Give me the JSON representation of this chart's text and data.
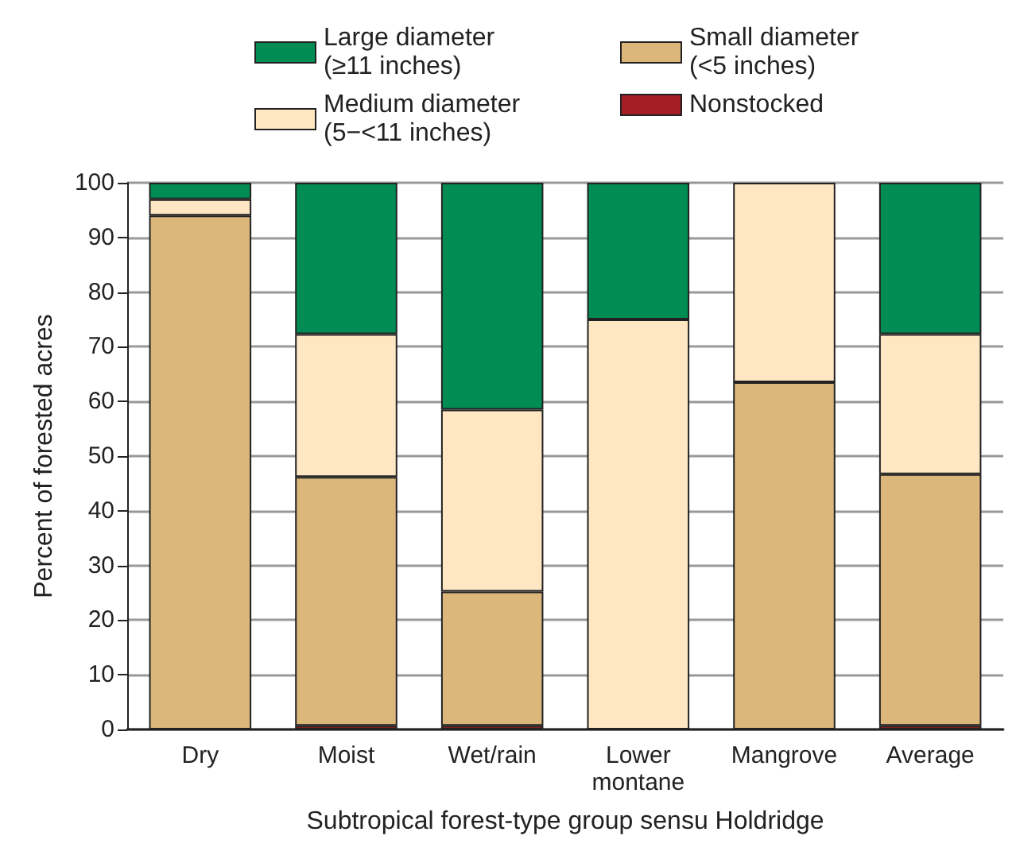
{
  "chart_data": {
    "type": "bar",
    "stacked": true,
    "xlabel": "Subtropical forest-type group sensu Holdridge",
    "ylabel": "Percent of forested acres",
    "categories": [
      "Dry",
      "Moist",
      "Wet/rain",
      "Lower montane",
      "Mangrove",
      "Average"
    ],
    "series": [
      {
        "name": "Nonstocked",
        "color": "#a31f24",
        "values": [
          0,
          0.7,
          0.7,
          0,
          0,
          0.7
        ]
      },
      {
        "name": "Small diameter (<5 inches)",
        "color": "#dbb77c",
        "values": [
          94,
          45.5,
          24.5,
          0,
          63.5,
          46
        ]
      },
      {
        "name": "Medium diameter (5−<11 inches)",
        "color": "#fee7c2",
        "values": [
          3,
          26.1,
          33.3,
          75,
          36.5,
          25.6
        ]
      },
      {
        "name": "Large diameter (≥11 inches)",
        "color": "#008c52",
        "values": [
          3,
          27.7,
          41.5,
          25,
          0,
          27.7
        ]
      }
    ],
    "ylim": [
      0,
      100
    ],
    "yticks": [
      0,
      10,
      20,
      30,
      40,
      50,
      60,
      70,
      80,
      90,
      100
    ],
    "grid": "y",
    "legend": "top"
  }
}
